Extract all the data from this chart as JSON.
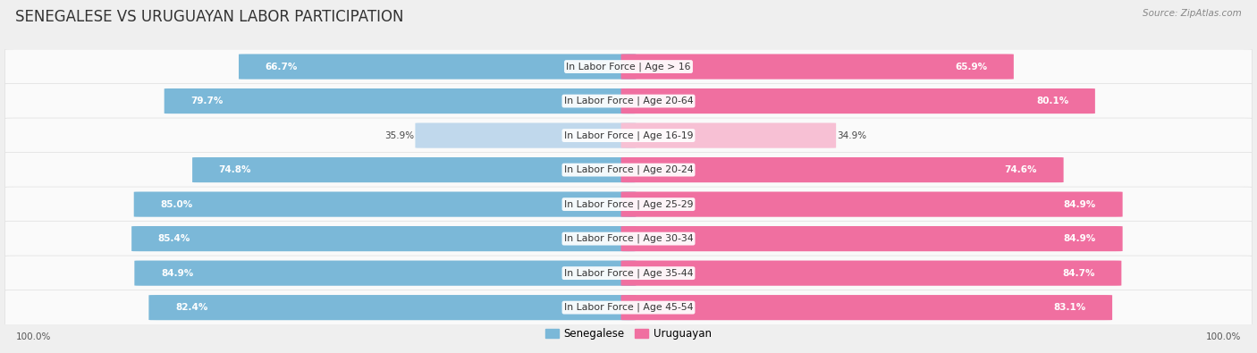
{
  "title": "SENEGALESE VS URUGUAYAN LABOR PARTICIPATION",
  "source": "Source: ZipAtlas.com",
  "categories": [
    "In Labor Force | Age > 16",
    "In Labor Force | Age 20-64",
    "In Labor Force | Age 16-19",
    "In Labor Force | Age 20-24",
    "In Labor Force | Age 25-29",
    "In Labor Force | Age 30-34",
    "In Labor Force | Age 35-44",
    "In Labor Force | Age 45-54"
  ],
  "senegalese": [
    66.7,
    79.7,
    35.9,
    74.8,
    85.0,
    85.4,
    84.9,
    82.4
  ],
  "uruguayan": [
    65.9,
    80.1,
    34.9,
    74.6,
    84.9,
    84.9,
    84.7,
    83.1
  ],
  "sen_color": "#7BB8D8",
  "uru_color": "#F06FA0",
  "sen_color_light": "#C0D8EC",
  "uru_color_light": "#F7C0D4",
  "bg_color": "#EFEFEF",
  "row_bg": "#FAFAFA",
  "row_border": "#E0E0E0",
  "max_val": 100.0,
  "title_fontsize": 12,
  "label_fontsize": 7.8,
  "value_fontsize": 7.5,
  "legend_fontsize": 8.5,
  "footer_fontsize": 7.5
}
